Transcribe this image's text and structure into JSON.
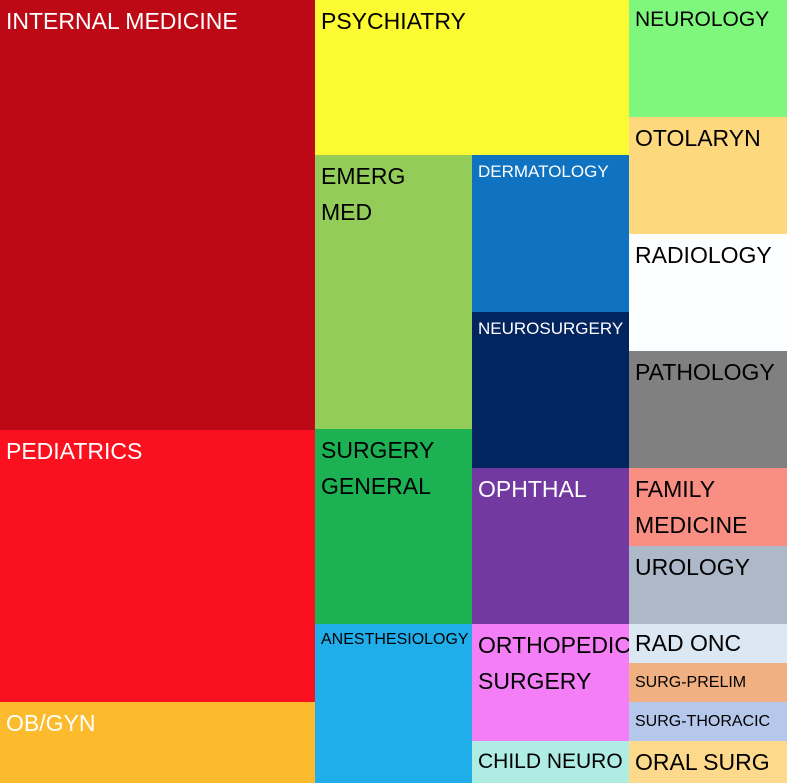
{
  "chart_data": {
    "type": "treemap",
    "title": "",
    "nodes": [
      {
        "label": "INTERNAL MEDICINE",
        "color": "#bd0915",
        "text_color": "#ffffff"
      },
      {
        "label": "PEDIATRICS",
        "color": "#fb101f",
        "text_color": "#ffffff"
      },
      {
        "label": "OB/GYN",
        "color": "#fcbb2c",
        "text_color": "#ffffff"
      },
      {
        "label": "PSYCHIATRY",
        "color": "#fcfa32",
        "text_color": "#000000"
      },
      {
        "label": "EMERG\nMED",
        "color": "#94cc5a",
        "text_color": "#000000"
      },
      {
        "label": "SURGERY\nGENERAL",
        "color": "#1cb153",
        "text_color": "#000000"
      },
      {
        "label": "ANESTHESIOLOGY",
        "color": "#20aeea",
        "text_color": "#000000"
      },
      {
        "label": "DERMATOLOGY",
        "color": "#1073c1",
        "text_color": "#ffffff"
      },
      {
        "label": "NEUROSURGERY",
        "color": "#03255f",
        "text_color": "#ffffff"
      },
      {
        "label": "OPHTHAL",
        "color": "#7239a0",
        "text_color": "#ffffff"
      },
      {
        "label": "ORTHOPEDIC\nSURGERY",
        "color": "#f37ef6",
        "text_color": "#000000"
      },
      {
        "label": "CHILD NEURO",
        "color": "#afece3",
        "text_color": "#000000"
      },
      {
        "label": "NEUROLOGY",
        "color": "#7ef77c",
        "text_color": "#000000"
      },
      {
        "label": "OTOLARYN",
        "color": "#fdd87c",
        "text_color": "#000000"
      },
      {
        "label": "RADIOLOGY",
        "color": "#fdfeff",
        "text_color": "#000000"
      },
      {
        "label": "PATHOLOGY",
        "color": "#808080",
        "text_color": "#000000"
      },
      {
        "label": "FAMILY\nMEDICINE",
        "color": "#f98e83",
        "text_color": "#000000"
      },
      {
        "label": "UROLOGY",
        "color": "#adb9c9",
        "text_color": "#000000"
      },
      {
        "label": "RAD ONC",
        "color": "#dce7f4",
        "text_color": "#000000"
      },
      {
        "label": "SURG-PRELIM",
        "color": "#f0b081",
        "text_color": "#000000"
      },
      {
        "label": "SURG-THORACIC",
        "color": "#b5c7ea",
        "text_color": "#000000"
      },
      {
        "label": "ORAL SURG",
        "color": "#fdd98c",
        "text_color": "#000000"
      }
    ]
  }
}
